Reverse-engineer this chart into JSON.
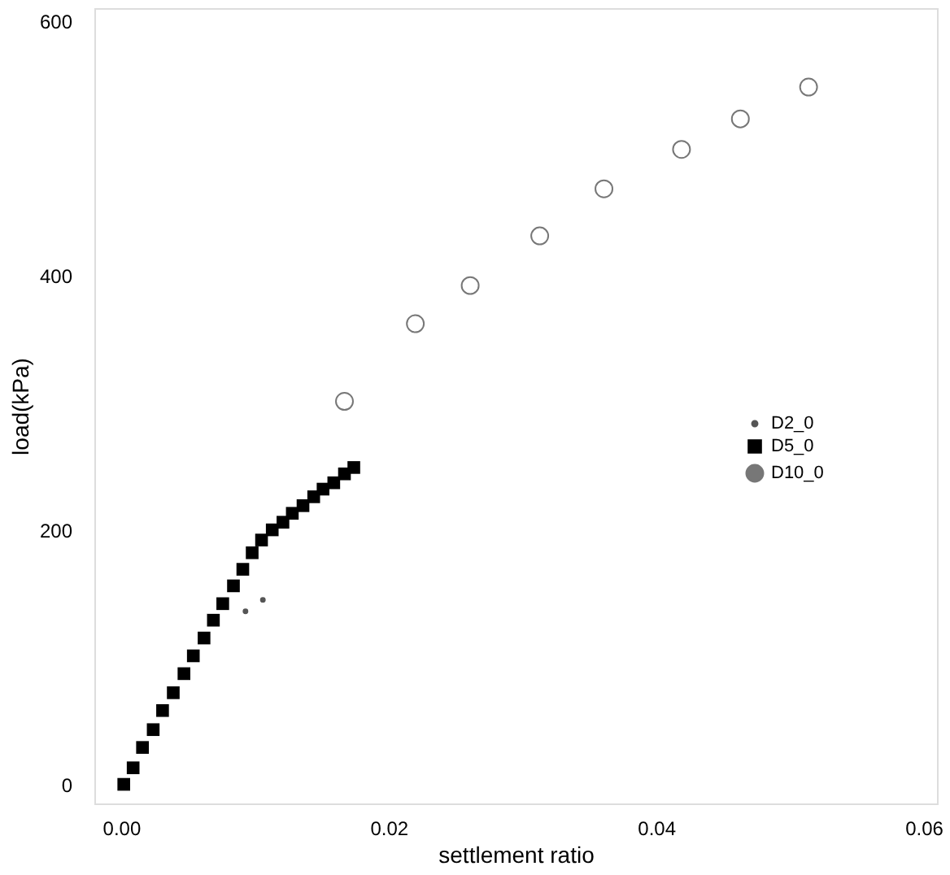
{
  "chart_data": {
    "type": "scatter",
    "xlabel": "settlement ratio",
    "ylabel": "load(kPa)",
    "xlim": [
      -0.002,
      0.061
    ],
    "ylim": [
      -15,
      610
    ],
    "xticks": [
      {
        "value": 0,
        "label": "0.00"
      },
      {
        "value": 0.02,
        "label": "0.02"
      },
      {
        "value": 0.04,
        "label": "0.04"
      },
      {
        "value": 0.06,
        "label": "0.06"
      }
    ],
    "yticks": [
      0,
      200,
      400,
      600
    ],
    "grid": false,
    "legend": "right",
    "series": [
      {
        "name": "D2_0",
        "color": "#555555",
        "marker": "circle",
        "x": [
          0.0093,
          0.0106
        ],
        "values": [
          136,
          145
        ]
      },
      {
        "name": "D5_0",
        "color": "#000000",
        "marker": "square",
        "x": [
          0.0002,
          0.0009,
          0.0016,
          0.0024,
          0.0031,
          0.0039,
          0.0047,
          0.0054,
          0.0062,
          0.0069,
          0.0076,
          0.0084,
          0.0091,
          0.0098,
          0.0105,
          0.0113,
          0.0121,
          0.0128,
          0.0136,
          0.0144,
          0.0151,
          0.0159,
          0.0167,
          0.0174
        ],
        "values": [
          0,
          13,
          29,
          43,
          58,
          72,
          87,
          101,
          115,
          129,
          142,
          156,
          169,
          182,
          192,
          200,
          206,
          213,
          219,
          226,
          232,
          237,
          244,
          249
        ]
      },
      {
        "name": "D10_0",
        "color": "#777777",
        "marker": "circle_open",
        "x": [
          0.0167,
          0.022,
          0.0261,
          0.0313,
          0.0361,
          0.0419,
          0.0463,
          0.0514
        ],
        "values": [
          301,
          362,
          392,
          431,
          468,
          499,
          523,
          548
        ]
      }
    ]
  }
}
